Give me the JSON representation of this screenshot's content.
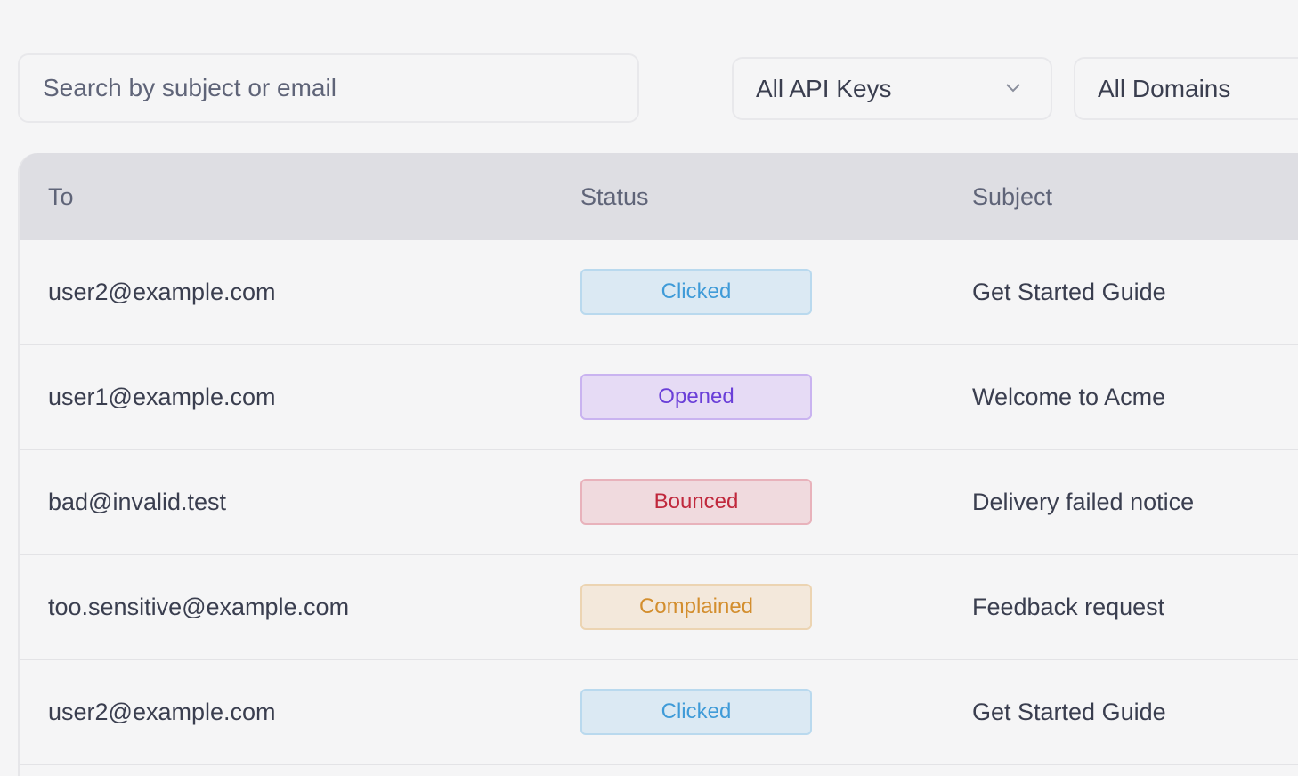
{
  "filters": {
    "search_placeholder": "Search by subject or email",
    "api_keys": "All API Keys",
    "domains": "All Domains"
  },
  "table": {
    "headers": [
      "To",
      "Status",
      "Subject"
    ],
    "rows": [
      {
        "to": "user2@example.com",
        "status": "Clicked",
        "subject": "Get Started Guide"
      },
      {
        "to": "user1@example.com",
        "status": "Opened",
        "subject": "Welcome to Acme"
      },
      {
        "to": "bad@invalid.test",
        "status": "Bounced",
        "subject": "Delivery failed notice"
      },
      {
        "to": "too.sensitive@example.com",
        "status": "Complained",
        "subject": "Feedback request"
      },
      {
        "to": "user2@example.com",
        "status": "Clicked",
        "subject": "Get Started Guide"
      }
    ]
  },
  "status_colors": {
    "Clicked": {
      "bg": "#dbe9f3",
      "border": "#b9d9ee",
      "text": "#3f9bd8"
    },
    "Opened": {
      "bg": "#e6dbf5",
      "border": "#c9b3f0",
      "text": "#6a3fd8"
    },
    "Bounced": {
      "bg": "#f0dade",
      "border": "#e8b2bb",
      "text": "#c0283c"
    },
    "Complained": {
      "bg": "#f3e8db",
      "border": "#ecd4b2",
      "text": "#d38e2e"
    }
  }
}
